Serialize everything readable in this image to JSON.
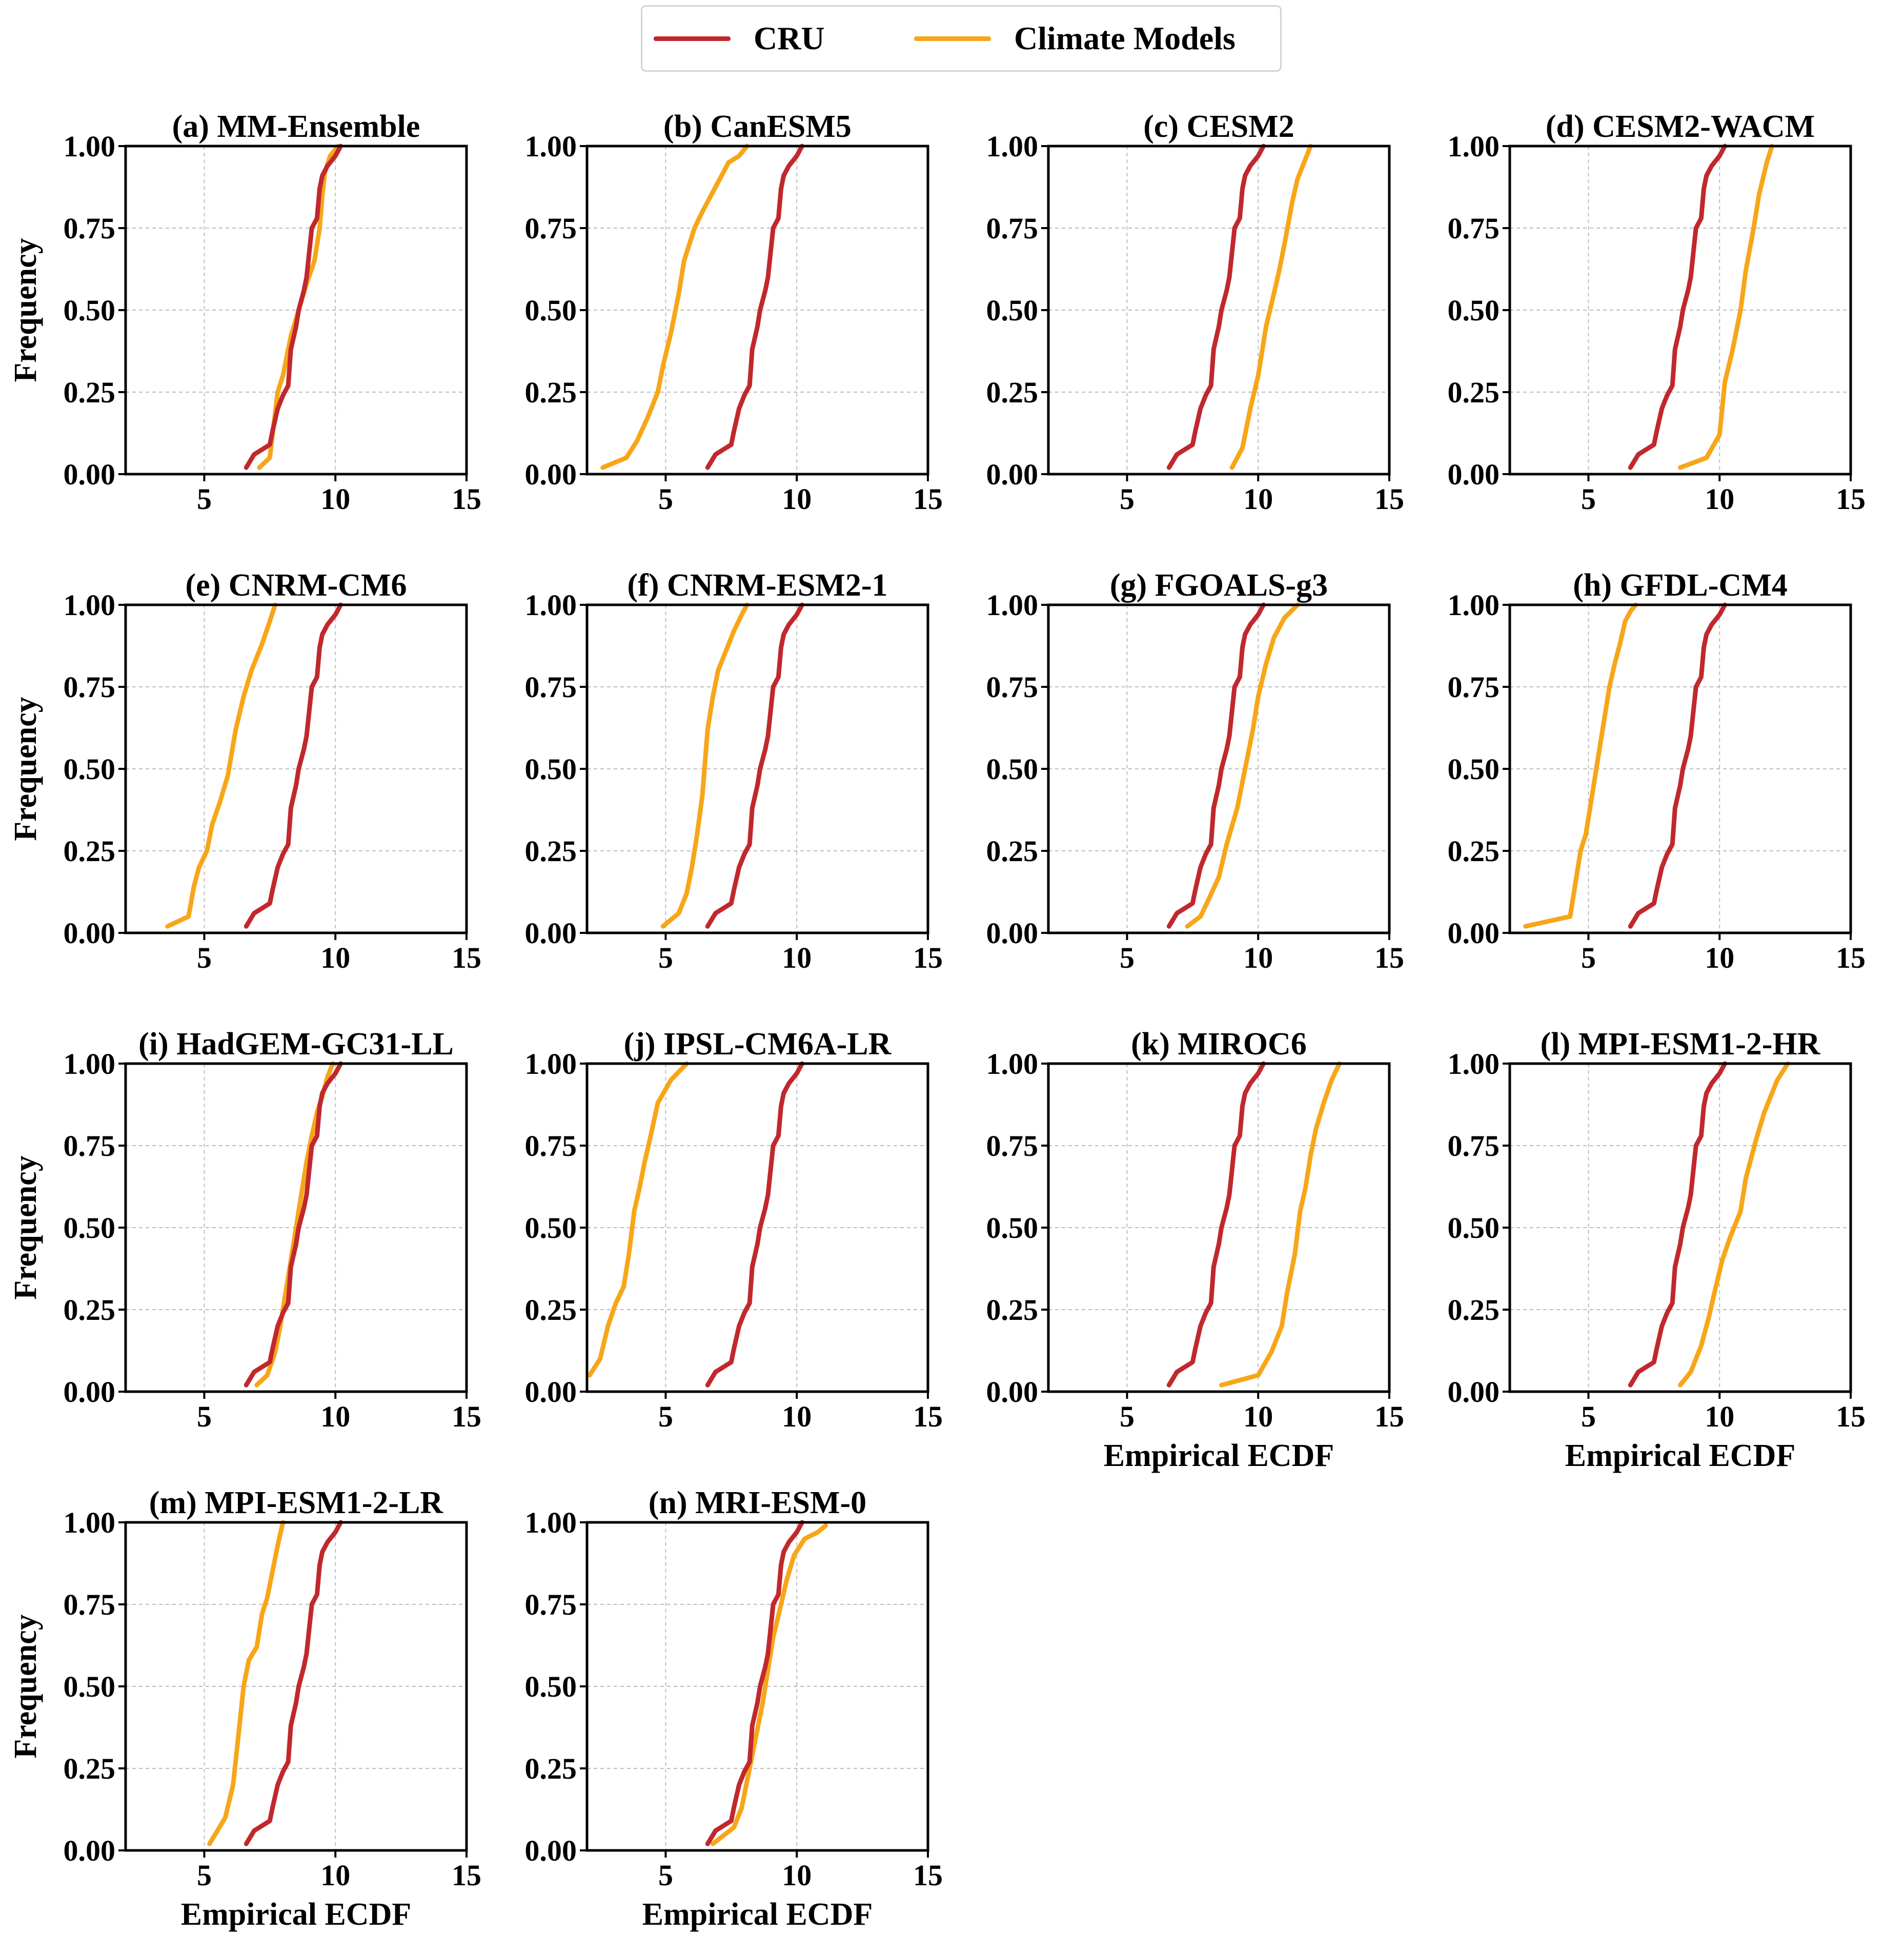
{
  "legend": {
    "items": [
      {
        "label": "CRU",
        "color": "#c0282d"
      },
      {
        "label": "Climate Models",
        "color": "#f7a619"
      }
    ]
  },
  "colors": {
    "cru": "#c0282d",
    "model": "#f7a619",
    "grid": "#bdbdbd"
  },
  "chart_data": {
    "type": "line",
    "xlim": [
      2,
      15
    ],
    "ylim": [
      0,
      1
    ],
    "xticks": [
      "5",
      "10",
      "15"
    ],
    "yticks": [
      "0.00",
      "0.25",
      "0.50",
      "0.75",
      "1.00"
    ],
    "ylabel": "Frequency",
    "xlabel": "Empirical ECDF",
    "grid": true,
    "legend": "top-center",
    "cru": {
      "name": "CRU",
      "x": [
        6.6,
        6.9,
        7.5,
        7.6,
        7.8,
        8.0,
        8.2,
        8.3,
        8.5,
        8.6,
        8.8,
        8.9,
        9.1,
        9.3,
        9.4,
        9.5,
        9.7,
        10.0,
        10.2
      ],
      "y": [
        0.02,
        0.06,
        0.09,
        0.13,
        0.2,
        0.24,
        0.27,
        0.38,
        0.45,
        0.5,
        0.56,
        0.6,
        0.75,
        0.78,
        0.87,
        0.91,
        0.94,
        0.97,
        1.0
      ]
    },
    "panels": [
      {
        "title": "(a) MM-Ensemble",
        "show_ylabel": true,
        "show_xlabel": false,
        "model": {
          "x": [
            7.1,
            7.5,
            7.6,
            7.8,
            8.0,
            8.3,
            8.6,
            8.9,
            9.2,
            9.4,
            9.5,
            9.6,
            9.8,
            10.1
          ],
          "y": [
            0.02,
            0.05,
            0.12,
            0.25,
            0.3,
            0.42,
            0.5,
            0.58,
            0.65,
            0.75,
            0.85,
            0.92,
            0.97,
            1.0
          ]
        }
      },
      {
        "title": "(b) CanESM5",
        "show_ylabel": false,
        "show_xlabel": false,
        "model": {
          "x": [
            2.6,
            3.5,
            3.9,
            4.3,
            4.7,
            4.9,
            5.2,
            5.5,
            5.7,
            5.9,
            6.1,
            6.4,
            6.8,
            7.2,
            7.4,
            7.8,
            8.1
          ],
          "y": [
            0.02,
            0.05,
            0.1,
            0.17,
            0.25,
            0.33,
            0.43,
            0.55,
            0.65,
            0.7,
            0.75,
            0.8,
            0.86,
            0.92,
            0.95,
            0.97,
            1.0
          ]
        }
      },
      {
        "title": "(c) CESM2",
        "show_ylabel": false,
        "show_xlabel": false,
        "model": {
          "x": [
            9.0,
            9.4,
            9.7,
            10.0,
            10.3,
            10.6,
            10.8,
            11.0,
            11.3,
            11.5,
            11.8,
            12.0
          ],
          "y": [
            0.02,
            0.08,
            0.2,
            0.3,
            0.45,
            0.55,
            0.62,
            0.7,
            0.83,
            0.9,
            0.96,
            1.0
          ]
        }
      },
      {
        "title": "(d) CESM2-WACM",
        "show_ylabel": false,
        "show_xlabel": false,
        "model": {
          "x": [
            8.5,
            9.5,
            10.0,
            10.2,
            10.5,
            10.8,
            11.0,
            11.3,
            11.5,
            11.8,
            12.0
          ],
          "y": [
            0.02,
            0.05,
            0.12,
            0.28,
            0.38,
            0.5,
            0.62,
            0.75,
            0.85,
            0.95,
            1.0
          ]
        }
      },
      {
        "title": "(e) CNRM-CM6",
        "show_ylabel": true,
        "show_xlabel": false,
        "model": {
          "x": [
            3.6,
            4.4,
            4.6,
            4.8,
            5.1,
            5.3,
            5.6,
            5.9,
            6.2,
            6.5,
            6.8,
            7.2,
            7.5,
            7.7
          ],
          "y": [
            0.02,
            0.05,
            0.14,
            0.2,
            0.25,
            0.33,
            0.4,
            0.48,
            0.62,
            0.72,
            0.8,
            0.88,
            0.95,
            1.0
          ]
        }
      },
      {
        "title": "(f) CNRM-ESM2-1",
        "show_ylabel": false,
        "show_xlabel": false,
        "model": {
          "x": [
            4.9,
            5.5,
            5.8,
            6.0,
            6.2,
            6.4,
            6.5,
            6.6,
            6.8,
            7.0,
            7.3,
            7.6,
            7.9,
            8.1
          ],
          "y": [
            0.02,
            0.06,
            0.12,
            0.2,
            0.3,
            0.42,
            0.52,
            0.62,
            0.72,
            0.8,
            0.86,
            0.92,
            0.97,
            1.0
          ]
        }
      },
      {
        "title": "(g) FGOALS-g3",
        "show_ylabel": false,
        "show_xlabel": false,
        "model": {
          "x": [
            7.3,
            7.8,
            8.1,
            8.5,
            8.8,
            9.2,
            9.5,
            9.8,
            10.0,
            10.3,
            10.6,
            11.0,
            11.5
          ],
          "y": [
            0.02,
            0.05,
            0.1,
            0.17,
            0.27,
            0.38,
            0.5,
            0.62,
            0.72,
            0.82,
            0.9,
            0.96,
            1.0
          ]
        }
      },
      {
        "title": "(h) GFDL-CM4",
        "show_ylabel": false,
        "show_xlabel": false,
        "model": {
          "x": [
            2.6,
            4.3,
            4.5,
            4.7,
            4.9,
            5.2,
            5.4,
            5.6,
            5.8,
            6.0,
            6.2,
            6.4,
            6.6,
            6.8
          ],
          "y": [
            0.02,
            0.05,
            0.15,
            0.25,
            0.3,
            0.45,
            0.55,
            0.65,
            0.75,
            0.82,
            0.88,
            0.95,
            0.98,
            1.0
          ]
        }
      },
      {
        "title": "(i) HadGEM-GC31-LL",
        "show_ylabel": true,
        "show_xlabel": false,
        "model": {
          "x": [
            7.0,
            7.4,
            7.7,
            7.9,
            8.1,
            8.3,
            8.5,
            8.7,
            8.9,
            9.1,
            9.3,
            9.5,
            9.7,
            9.9
          ],
          "y": [
            0.02,
            0.05,
            0.12,
            0.2,
            0.3,
            0.4,
            0.5,
            0.6,
            0.7,
            0.78,
            0.85,
            0.9,
            0.96,
            1.0
          ]
        }
      },
      {
        "title": "(j) IPSL-CM6A-LR",
        "show_ylabel": false,
        "show_xlabel": false,
        "model": {
          "x": [
            2.1,
            2.5,
            2.8,
            3.1,
            3.4,
            3.6,
            3.8,
            4.0,
            4.2,
            4.4,
            4.7,
            5.2,
            5.8
          ],
          "y": [
            0.05,
            0.1,
            0.2,
            0.27,
            0.32,
            0.42,
            0.55,
            0.62,
            0.7,
            0.77,
            0.88,
            0.95,
            1.0
          ]
        }
      },
      {
        "title": "(k) MIROC6",
        "show_ylabel": false,
        "show_xlabel": true,
        "model": {
          "x": [
            8.6,
            10.0,
            10.5,
            10.9,
            11.1,
            11.4,
            11.6,
            11.8,
            12.0,
            12.2,
            12.5,
            12.8,
            13.1
          ],
          "y": [
            0.02,
            0.05,
            0.12,
            0.2,
            0.3,
            0.42,
            0.55,
            0.62,
            0.72,
            0.8,
            0.88,
            0.95,
            1.0
          ]
        }
      },
      {
        "title": "(l) MPI-ESM1-2-HR",
        "show_ylabel": false,
        "show_xlabel": true,
        "model": {
          "x": [
            8.5,
            8.9,
            9.3,
            9.6,
            9.8,
            10.1,
            10.4,
            10.8,
            11.0,
            11.4,
            11.7,
            12.2,
            12.6
          ],
          "y": [
            0.02,
            0.06,
            0.14,
            0.23,
            0.3,
            0.4,
            0.47,
            0.55,
            0.65,
            0.77,
            0.85,
            0.95,
            1.0
          ]
        }
      },
      {
        "title": "(m) MPI-ESM1-2-LR",
        "show_ylabel": true,
        "show_xlabel": true,
        "model": {
          "x": [
            5.2,
            5.8,
            6.1,
            6.3,
            6.5,
            6.7,
            7.0,
            7.2,
            7.4,
            7.6,
            7.8,
            8.0
          ],
          "y": [
            0.02,
            0.1,
            0.2,
            0.35,
            0.5,
            0.58,
            0.62,
            0.72,
            0.77,
            0.85,
            0.93,
            1.0
          ]
        }
      },
      {
        "title": "(n) MRI-ESM-0",
        "show_ylabel": false,
        "show_xlabel": true,
        "model": {
          "x": [
            6.8,
            7.6,
            7.9,
            8.2,
            8.5,
            8.7,
            8.9,
            9.1,
            9.4,
            9.6,
            9.9,
            10.3,
            10.8,
            11.1
          ],
          "y": [
            0.02,
            0.07,
            0.13,
            0.25,
            0.37,
            0.45,
            0.55,
            0.65,
            0.75,
            0.82,
            0.9,
            0.95,
            0.97,
            0.99
          ]
        }
      }
    ]
  }
}
